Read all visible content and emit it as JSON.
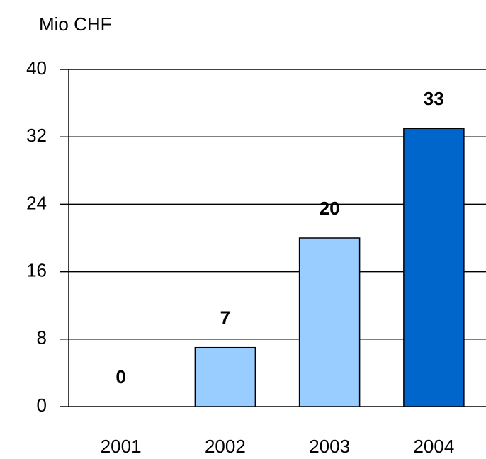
{
  "chart_data": {
    "type": "bar",
    "y_label": "Mio CHF",
    "categories": [
      "2001",
      "2002",
      "2003",
      "2004"
    ],
    "values": [
      0,
      7,
      20,
      33
    ],
    "colors": [
      "#99ccff",
      "#99ccff",
      "#99ccff",
      "#0066cc"
    ],
    "ylim": [
      0,
      40
    ],
    "yticks": [
      0,
      8,
      16,
      24,
      32,
      40
    ],
    "grid": true
  }
}
